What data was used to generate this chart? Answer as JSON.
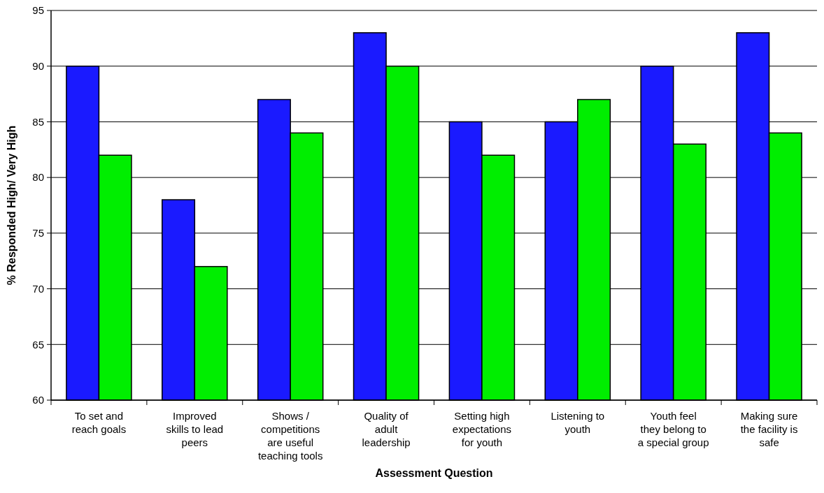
{
  "chart_data": {
    "type": "bar",
    "xlabel": "Assessment Question",
    "ylabel": "% Responded High/ Very High",
    "categories": [
      "To set and\nreach goals",
      "Improved\nskills to lead\npeers",
      "Shows /\ncompetitions\nare useful\nteaching tools",
      "Quality of\nadult\nleadership",
      "Setting high\nexpectations\nfor youth",
      "Listening to\nyouth",
      "Youth feel\nthey belong to\na special group",
      "Making sure\nthe facility is\nsafe"
    ],
    "series": [
      {
        "color": "#1a1aff",
        "values": [
          90,
          78,
          87,
          93,
          85,
          85,
          90,
          93
        ]
      },
      {
        "color": "#00ee00",
        "values": [
          82,
          72,
          84,
          90,
          82,
          87,
          83,
          84
        ]
      }
    ],
    "ylim": [
      60,
      95
    ],
    "yticks": [
      60,
      65,
      70,
      75,
      80,
      85,
      90,
      95
    ],
    "grid": "y"
  }
}
